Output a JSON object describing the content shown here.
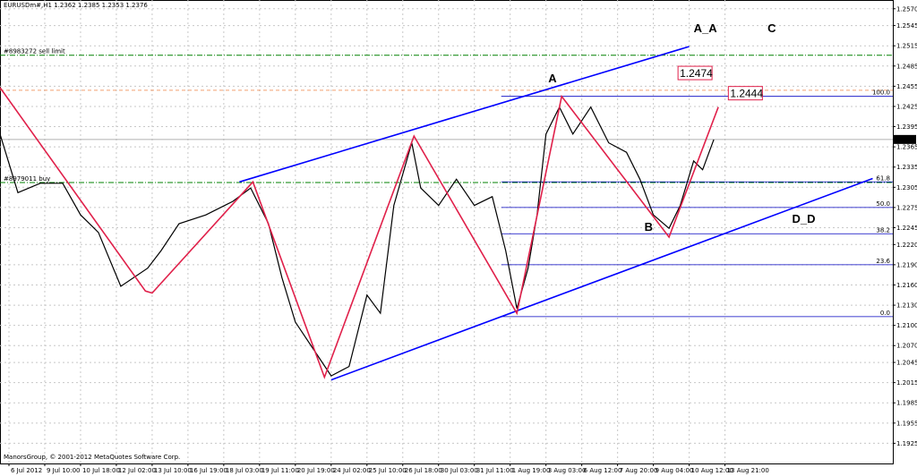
{
  "chart_data": {
    "type": "line",
    "title": "EURUSDm#,H1  1.2362 1.2385 1.2353 1.2376",
    "footer": "ManorsGroup, © 2001-2012 MetaQuotes Software Corp.",
    "color": "#000000",
    "grid": true,
    "x": [
      0,
      16,
      36,
      56,
      72,
      88,
      108,
      132,
      144,
      160,
      184,
      208,
      224,
      240,
      252,
      264,
      280,
      296,
      312,
      328,
      340,
      352,
      368,
      376,
      392,
      408,
      424,
      440,
      452,
      462,
      472,
      480,
      488,
      500,
      512,
      528,
      544,
      560,
      572,
      584,
      598,
      608,
      620,
      628,
      638
    ],
    "values": [
      1.2384,
      1.2297,
      1.2311,
      1.2311,
      1.2264,
      1.2238,
      1.2158,
      1.2185,
      1.2211,
      1.2251,
      1.2264,
      1.2284,
      1.2304,
      1.2251,
      1.2171,
      1.2105,
      1.2065,
      1.2025,
      1.2039,
      1.2145,
      1.2118,
      1.2278,
      1.2371,
      1.2304,
      1.2278,
      1.2317,
      1.2278,
      1.2291,
      1.2211,
      1.2125,
      1.2185,
      1.2264,
      1.2384,
      1.2424,
      1.2384,
      1.2424,
      1.2371,
      1.2357,
      1.2317,
      1.2264,
      1.2244,
      1.2278,
      1.2344,
      1.2331,
      1.2376
    ],
    "current_price": 1.2376,
    "xlim": [
      0,
      798
    ],
    "ylim": [
      1.1895,
      1.2583
    ],
    "xticks": [
      {
        "value": 8,
        "label": "6 Jul 2012"
      },
      {
        "value": 40,
        "label": "9 Jul 10:00"
      },
      {
        "value": 72,
        "label": "10 Jul 18:00"
      },
      {
        "value": 104,
        "label": "12 Jul 02:00"
      },
      {
        "value": 136,
        "label": "13 Jul 10:00"
      },
      {
        "value": 168,
        "label": "16 Jul 19:00"
      },
      {
        "value": 200,
        "label": "18 Jul 03:00"
      },
      {
        "value": 232,
        "label": "19 Jul 11:00"
      },
      {
        "value": 264,
        "label": "20 Jul 19:00"
      },
      {
        "value": 296,
        "label": "24 Jul 02:00"
      },
      {
        "value": 328,
        "label": "25 Jul 10:00"
      },
      {
        "value": 360,
        "label": "26 Jul 18:00"
      },
      {
        "value": 392,
        "label": "30 Jul 03:00"
      },
      {
        "value": 424,
        "label": "31 Jul 11:00"
      },
      {
        "value": 456,
        "label": "1 Aug 19:00"
      },
      {
        "value": 488,
        "label": "3 Aug 03:00"
      },
      {
        "value": 520,
        "label": "6 Aug 12:00"
      },
      {
        "value": 552,
        "label": "7 Aug 20:00"
      },
      {
        "value": 584,
        "label": "9 Aug 04:00"
      },
      {
        "value": 616,
        "label": "10 Aug 12:00"
      },
      {
        "value": 648,
        "label": "13 Aug 21:00"
      }
    ],
    "yticks": [
      {
        "value": 1.257,
        "label": "1.2570"
      },
      {
        "value": 1.2545,
        "label": "1.2545"
      },
      {
        "value": 1.2515,
        "label": "1.2515"
      },
      {
        "value": 1.2485,
        "label": "1.2485"
      },
      {
        "value": 1.2455,
        "label": "1.2455"
      },
      {
        "value": 1.2425,
        "label": "1.2425"
      },
      {
        "value": 1.2395,
        "label": "1.2395"
      },
      {
        "value": 1.2365,
        "label": "1.2365"
      },
      {
        "value": 1.2335,
        "label": "1.2335"
      },
      {
        "value": 1.2305,
        "label": "1.2305"
      },
      {
        "value": 1.2275,
        "label": "1.2275"
      },
      {
        "value": 1.2245,
        "label": "1.2245"
      },
      {
        "value": 1.222,
        "label": "1.2220"
      },
      {
        "value": 1.219,
        "label": "1.2190"
      },
      {
        "value": 1.216,
        "label": "1.2160"
      },
      {
        "value": 1.213,
        "label": "1.2130"
      },
      {
        "value": 1.21,
        "label": "1.2100"
      },
      {
        "value": 1.207,
        "label": "1.2070"
      },
      {
        "value": 1.2045,
        "label": "1.2045"
      },
      {
        "value": 1.2015,
        "label": "1.2015"
      },
      {
        "value": 1.1985,
        "label": "1.1985"
      },
      {
        "value": 1.1955,
        "label": "1.1955"
      },
      {
        "value": 1.1925,
        "label": "1.1925"
      }
    ],
    "order_lines": [
      {
        "label": "#8983272 sell limit",
        "price": 1.2501,
        "color": "#008000"
      },
      {
        "label": "#8979011 buy",
        "price": 1.2312,
        "color": "#008000"
      }
    ],
    "level_lines": [
      {
        "price": 1.2449,
        "color": "#f4a070"
      }
    ],
    "fibonacci": {
      "color": "#0000c0",
      "from_x": 448,
      "levels": [
        {
          "label": "100.0",
          "price": 1.244
        },
        {
          "label": "61.8",
          "price": 1.2313
        },
        {
          "label": "50.0",
          "price": 1.2275
        },
        {
          "label": "38.2",
          "price": 1.2236
        },
        {
          "label": "23.6",
          "price": 1.219
        },
        {
          "label": "0.0",
          "price": 1.2113
        }
      ]
    },
    "trend_lines": [
      {
        "color": "#0000ff",
        "x": [
          214,
          616
        ],
        "y": [
          1.2313,
          1.2514
        ]
      },
      {
        "color": "#0000ff",
        "x": [
          296,
          780
        ],
        "y": [
          1.2019,
          1.2318
        ]
      },
      {
        "color": "#e0204a",
        "x": [
          0,
          130,
          136,
          226,
          290,
          370,
          462,
          502,
          598,
          642
        ],
        "y": [
          1.2453,
          1.2151,
          1.2148,
          1.2313,
          1.2023,
          1.2381,
          1.2118,
          1.244,
          1.2231,
          1.2424
        ]
      }
    ],
    "annotations": [
      {
        "text": "A_A",
        "x": 620,
        "y": 1.2535,
        "color": "#00008b"
      },
      {
        "text": "C",
        "x": 686,
        "y": 1.2535,
        "color": "#e0204a"
      },
      {
        "text": "A",
        "x": 490,
        "y": 1.2461,
        "color": "#e0204a"
      },
      {
        "text": "B",
        "x": 576,
        "y": 1.224,
        "color": "#e0204a"
      },
      {
        "text": "D_D",
        "x": 708,
        "y": 1.2252,
        "color": "#00008b"
      }
    ],
    "price_boxes": [
      {
        "value": 1.2474,
        "x": 606,
        "color": "#e0204a"
      },
      {
        "value": 1.2444,
        "x": 651,
        "color": "#e0204a"
      }
    ]
  }
}
